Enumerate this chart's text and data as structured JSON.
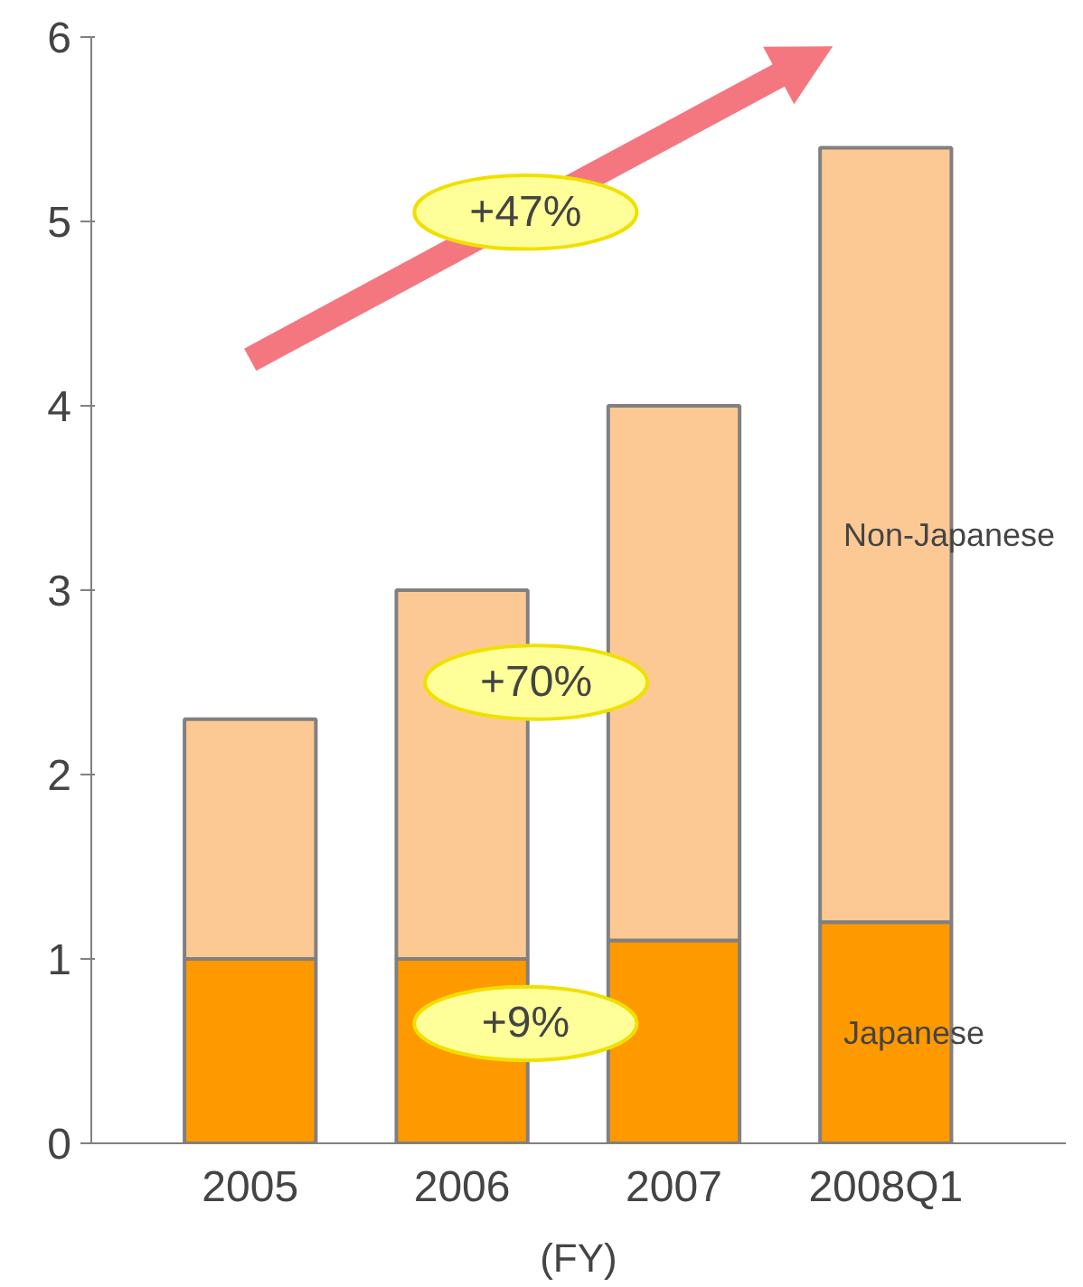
{
  "chart_data": {
    "type": "bar",
    "stacked": true,
    "xlabel": "(FY)",
    "categories": [
      "2005",
      "2006",
      "2007",
      "2008Q1"
    ],
    "series": [
      {
        "name": "Japanese",
        "color": "#ff9900",
        "values": [
          1.0,
          1.0,
          1.1,
          1.2
        ]
      },
      {
        "name": "Non-Japanese",
        "color": "#fcc995",
        "values": [
          1.3,
          2.0,
          2.9,
          4.2
        ]
      }
    ],
    "ylim": [
      0,
      6
    ],
    "yticks": [
      0,
      1,
      2,
      3,
      4,
      5,
      6
    ],
    "grid": false,
    "annotations": [
      "+47%",
      "+70%",
      "+9%"
    ]
  }
}
